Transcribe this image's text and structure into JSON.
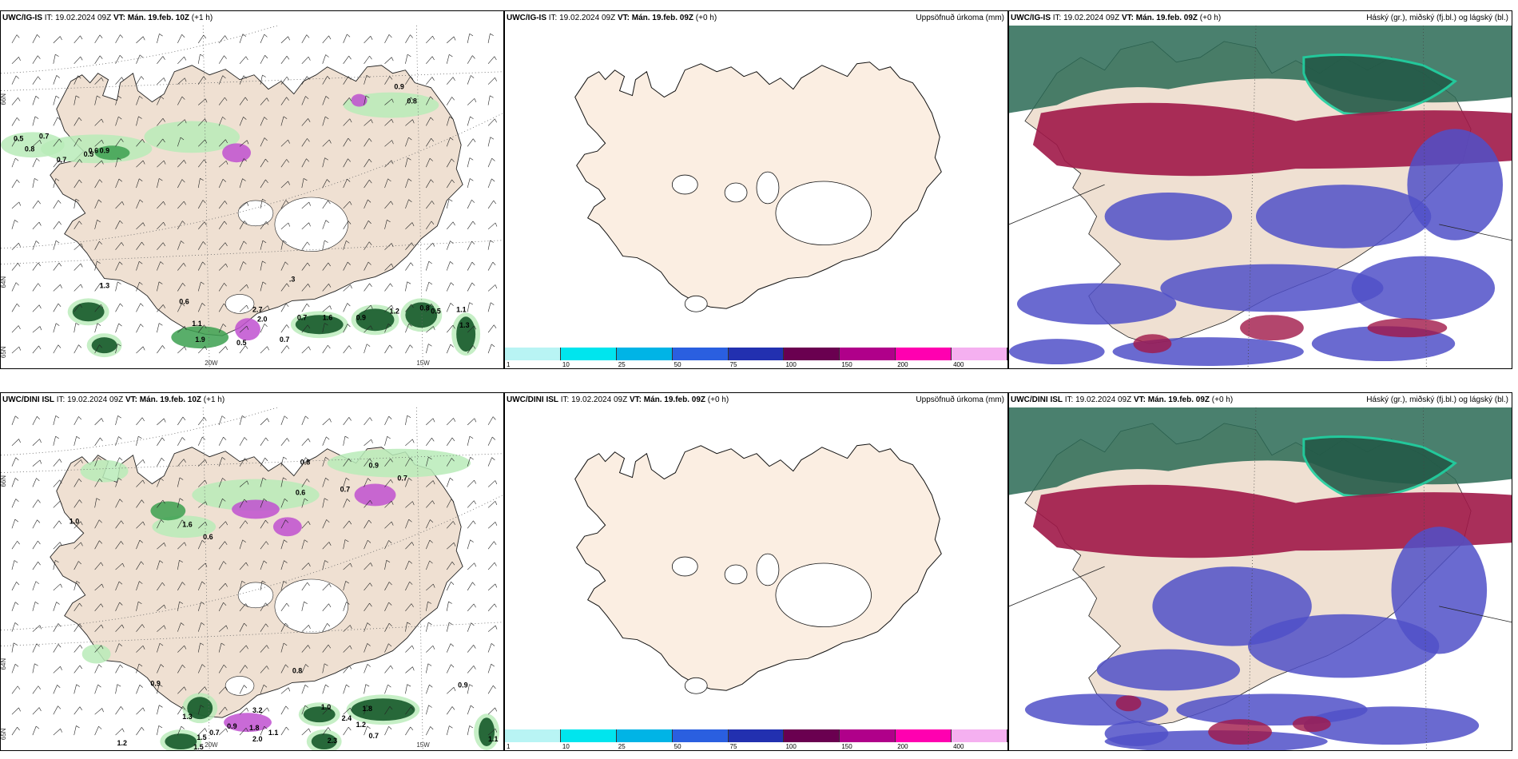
{
  "rows": [
    {
      "precip": {
        "model": "UWC/IG-IS",
        "it": "IT: 19.02.2024 09Z",
        "vt": "VT: Mán. 19.feb. 10Z",
        "lead": "(+1 h)",
        "labels": [
          "0.5",
          "0.7",
          "0.8",
          "0.7",
          "0.5",
          "0.6",
          "0.9",
          "0.9",
          "0.8",
          "1.3",
          "0.6",
          "1.1",
          "1.9",
          "0.7",
          "0.5",
          "0.7",
          "1.6",
          "0.9",
          "1.2",
          "0.8",
          "0.5",
          "1.1",
          "1.3",
          "2.7",
          "2.0",
          ".3"
        ]
      },
      "accum": {
        "model": "UWC/IG-IS",
        "it": "IT: 19.02.2024 09Z",
        "vt": "VT: Mán. 19.feb. 09Z",
        "lead": "(+0 h)",
        "title": "Uppsöfnuð úrkoma (mm)"
      },
      "cloud": {
        "model": "UWC/IG-IS",
        "it": "IT: 19.02.2024 09Z",
        "vt": "VT: Mán. 19.feb. 09Z",
        "lead": "(+0 h)",
        "title": "Háský (gr.), miðský (fj.bl.) og lágský (bl.)"
      }
    },
    {
      "precip": {
        "model": "UWC/DINI ISL",
        "it": "IT: 19.02.2024 09Z",
        "vt": "VT: Mán. 19.feb. 10Z",
        "lead": "(+1 h)",
        "labels": [
          "1.2",
          "1.0",
          "1.6",
          "0.6",
          "0.6",
          "0.8",
          "0.9",
          "0.7",
          "0.7",
          "0.9",
          "1.3",
          "1.5",
          "0.7",
          "0.9",
          "1.8",
          "2.0",
          "3.2",
          "1.1",
          "1.0",
          "2.4",
          "1.8",
          "1.2",
          "2.3",
          "0.7",
          "1.5",
          "0.9",
          "1.1",
          "0.8"
        ]
      },
      "accum": {
        "model": "UWC/DINI ISL",
        "it": "IT: 19.02.2024 09Z",
        "vt": "VT: Mán. 19.feb. 09Z",
        "lead": "(+0 h)",
        "title": "Uppsöfnuð úrkoma (mm)"
      },
      "cloud": {
        "model": "UWC/DINI ISL",
        "it": "IT: 19.02.2024 09Z",
        "vt": "VT: Mán. 19.feb. 09Z",
        "lead": "(+0 h)",
        "title": "Háský (gr.), miðský (fj.bl.) og lágský (bl.)"
      }
    }
  ],
  "axes": {
    "lat66": "66N",
    "lat64": "64N",
    "lat65": "65N",
    "lon20": "20W",
    "lon15": "15W"
  },
  "colorbar": {
    "ticks": [
      "1",
      "10",
      "25",
      "50",
      "75",
      "100",
      "150",
      "200",
      "400"
    ],
    "colors": [
      "#b8f4f4",
      "#00e5ee",
      "#00b4e6",
      "#2a5fe0",
      "#2230b0",
      "#6a0050",
      "#b0008a",
      "#ff00b0",
      "#f5b0f0"
    ]
  },
  "colors": {
    "land": "#efe0d2",
    "land_accum": "#fbeee2",
    "precip_light": "#b8ebb8",
    "precip_mid": "#3ca050",
    "precip_dark": "#0a5020",
    "snow": "#c050d0",
    "cloud_high": "#2a6a55",
    "cloud_mid": "#a01848",
    "cloud_low": "#5050c8"
  }
}
